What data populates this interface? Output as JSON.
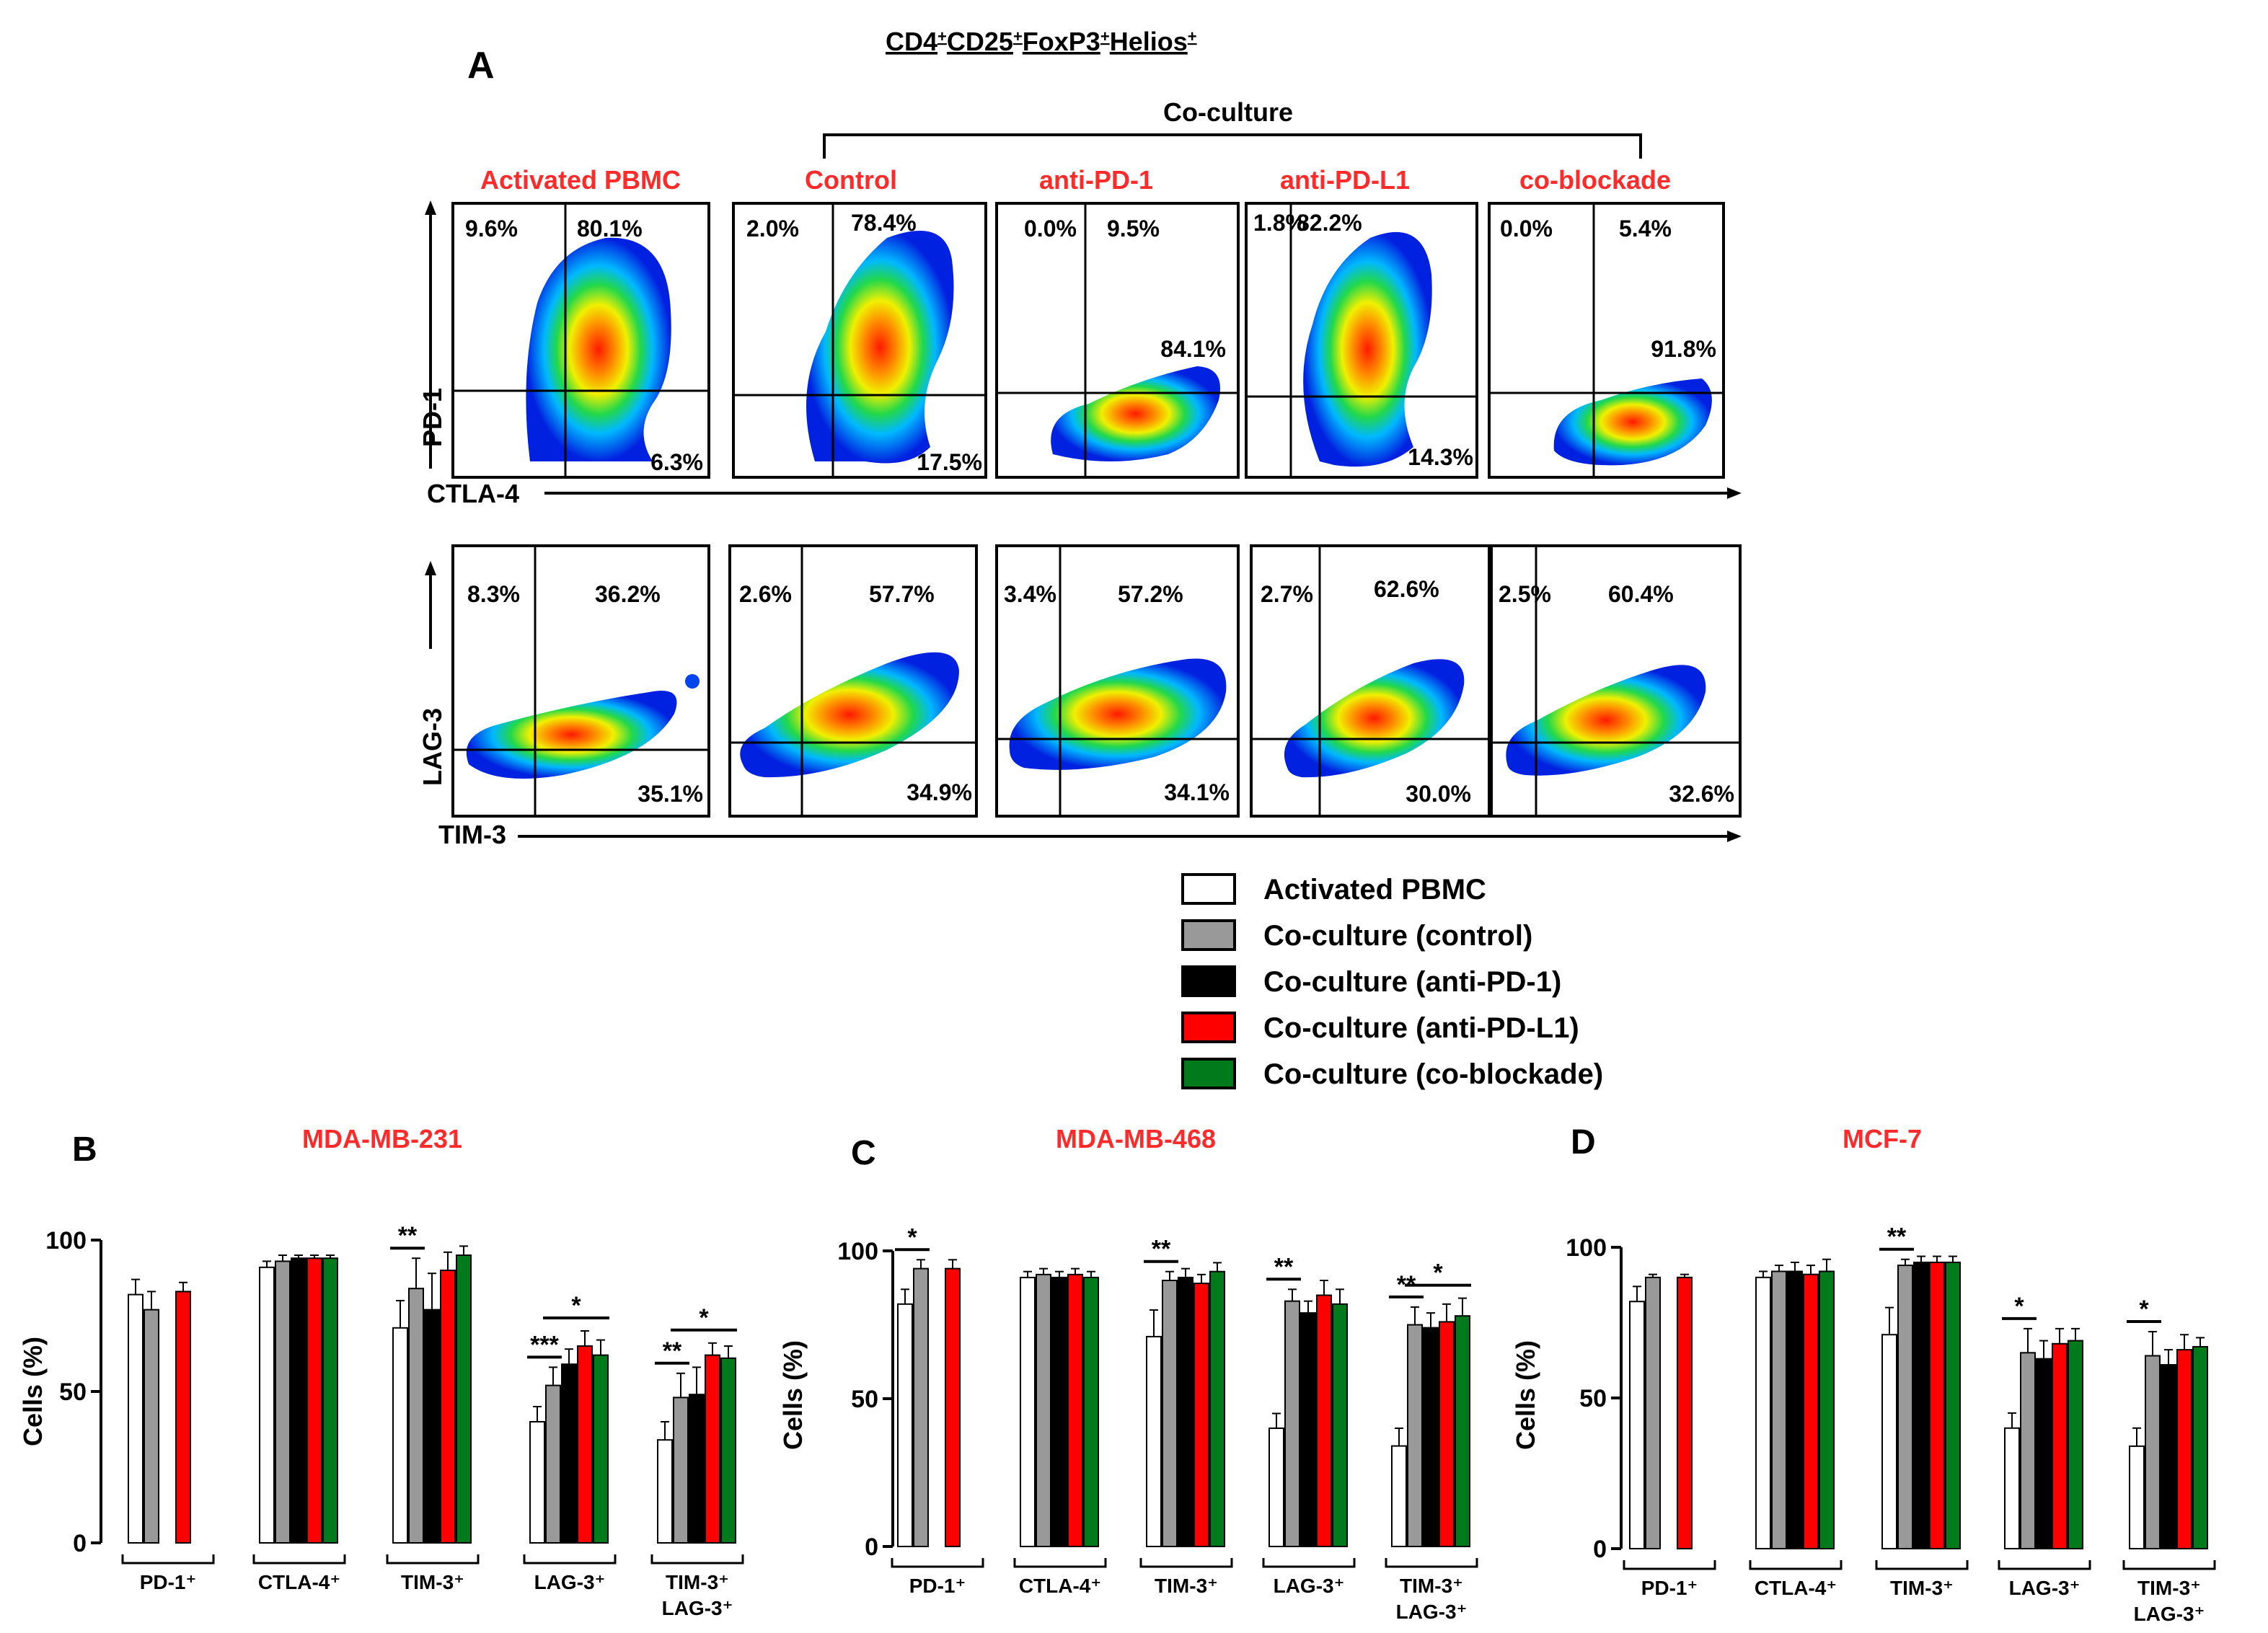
{
  "figure": {
    "panel_a_letter": "A",
    "title_main": "CD4",
    "title_sup1": "+",
    "title_cd25": "CD25",
    "title_sup2": "+",
    "title_foxp3": "FoxP3",
    "title_sup3": "+",
    "title_helios": "Helios",
    "title_sup4": "+",
    "coculture_label": "Co-culture"
  },
  "flow": {
    "conditions": [
      "Activated PBMC",
      "Control",
      "anti-PD-1",
      "anti-PD-L1",
      "co-blockade"
    ],
    "row1": {
      "y_label": "PD-1",
      "x_label": "CTLA-4",
      "plots": [
        {
          "ul": "9.6%",
          "ur": "80.1%",
          "lr": "6.3%"
        },
        {
          "ul": "2.0%",
          "ur": "78.4%",
          "lr": "17.5%"
        },
        {
          "ul": "0.0%",
          "ur": "9.5%",
          "lr": "84.1%"
        },
        {
          "ul": "1.8%",
          "ur": "82.2%",
          "lr": "14.3%"
        },
        {
          "ul": "0.0%",
          "ur": "5.4%",
          "lr": "91.8%"
        }
      ]
    },
    "row2": {
      "y_label": "LAG-3",
      "x_label": "TIM-3",
      "plots": [
        {
          "ul": "8.3%",
          "ur": "36.2%",
          "lr": "35.1%"
        },
        {
          "ul": "2.6%",
          "ur": "57.7%",
          "lr": "34.9%"
        },
        {
          "ul": "3.4%",
          "ur": "57.2%",
          "lr": "34.1%"
        },
        {
          "ul": "2.7%",
          "ur": "62.6%",
          "lr": "30.0%"
        },
        {
          "ul": "2.5%",
          "ur": "60.4%",
          "lr": "32.6%"
        }
      ]
    }
  },
  "legend": {
    "items": [
      {
        "label": "Activated PBMC",
        "color": "#ffffff"
      },
      {
        "label": "Co-culture (control)",
        "color": "#999999"
      },
      {
        "label": "Co-culture (anti-PD-1)",
        "color": "#000000"
      },
      {
        "label": "Co-culture (anti-PD-L1)",
        "color": "#ff0000"
      },
      {
        "label": "Co-culture (co-blockade)",
        "color": "#007a1a"
      }
    ]
  },
  "chart_data": [
    {
      "panel": "B",
      "type": "bar",
      "title": "MDA-MB-231",
      "ylabel": "Cells (%)",
      "ylim": [
        0,
        100
      ],
      "yticks": [
        0,
        50,
        100
      ],
      "categories": [
        "PD-1⁺",
        "CTLA-4⁺",
        "TIM-3⁺",
        "LAG-3⁺",
        "TIM-3⁺ LAG-3⁺"
      ],
      "category_lines": [
        [
          "PD-1⁺"
        ],
        [
          "CTLA-4⁺"
        ],
        [
          "TIM-3⁺"
        ],
        [
          "LAG-3⁺"
        ],
        [
          "TIM-3⁺",
          "LAG-3⁺"
        ]
      ],
      "series": [
        {
          "name": "Activated PBMC",
          "values": [
            82,
            91,
            71,
            40,
            34
          ],
          "errors": [
            5,
            2,
            9,
            5,
            6
          ]
        },
        {
          "name": "Co-culture (control)",
          "values": [
            77,
            93,
            84,
            52,
            48
          ],
          "errors": [
            6,
            2,
            10,
            6,
            8
          ]
        },
        {
          "name": "Co-culture (anti-PD-1)",
          "values": [
            null,
            94,
            77,
            59,
            49
          ],
          "errors": [
            null,
            1,
            12,
            5,
            9
          ]
        },
        {
          "name": "Co-culture (anti-PD-L1)",
          "values": [
            83,
            94,
            90,
            65,
            62
          ],
          "errors": [
            3,
            1,
            6,
            5,
            4
          ]
        },
        {
          "name": "Co-culture (co-blockade)",
          "values": [
            null,
            94,
            95,
            62,
            61
          ],
          "errors": [
            null,
            1,
            3,
            5,
            4
          ]
        }
      ],
      "significance": [
        {
          "group": 2,
          "from": 0,
          "to": 1,
          "label": "**"
        },
        {
          "group": 3,
          "from": 0,
          "to": 1,
          "label": "***"
        },
        {
          "group": 3,
          "from": 1,
          "to": 4,
          "label": "*"
        },
        {
          "group": 4,
          "from": 0,
          "to": 1,
          "label": "**"
        },
        {
          "group": 4,
          "from": 1,
          "to": 4,
          "label": "*"
        }
      ]
    },
    {
      "panel": "C",
      "type": "bar",
      "title": "MDA-MB-468",
      "ylabel": "Cells (%)",
      "ylim": [
        0,
        100
      ],
      "yticks": [
        0,
        50,
        100
      ],
      "categories": [
        "PD-1⁺",
        "CTLA-4⁺",
        "TIM-3⁺",
        "LAG-3⁺",
        "TIM-3⁺ LAG-3⁺"
      ],
      "category_lines": [
        [
          "PD-1⁺"
        ],
        [
          "CTLA-4⁺"
        ],
        [
          "TIM-3⁺"
        ],
        [
          "LAG-3⁺"
        ],
        [
          "TIM-3⁺",
          "LAG-3⁺"
        ]
      ],
      "series": [
        {
          "name": "Activated PBMC",
          "values": [
            82,
            91,
            71,
            40,
            34
          ],
          "errors": [
            5,
            2,
            9,
            5,
            6
          ]
        },
        {
          "name": "Co-culture (control)",
          "values": [
            94,
            92,
            90,
            83,
            75
          ],
          "errors": [
            3,
            2,
            3,
            4,
            6
          ]
        },
        {
          "name": "Co-culture (anti-PD-1)",
          "values": [
            null,
            91,
            91,
            79,
            74
          ],
          "errors": [
            null,
            2,
            3,
            4,
            5
          ]
        },
        {
          "name": "Co-culture (anti-PD-L1)",
          "values": [
            94,
            92,
            89,
            85,
            76
          ],
          "errors": [
            3,
            2,
            3,
            5,
            6
          ]
        },
        {
          "name": "Co-culture (co-blockade)",
          "values": [
            null,
            91,
            93,
            82,
            78
          ],
          "errors": [
            null,
            2,
            3,
            5,
            6
          ]
        }
      ],
      "significance": [
        {
          "group": 0,
          "from": 0,
          "to": 1,
          "label": "*"
        },
        {
          "group": 2,
          "from": 0,
          "to": 1,
          "label": "**"
        },
        {
          "group": 3,
          "from": 0,
          "to": 1,
          "label": "**"
        },
        {
          "group": 4,
          "from": 0,
          "to": 1,
          "label": "**"
        },
        {
          "group": 4,
          "from": 1,
          "to": 4,
          "label": "*"
        }
      ]
    },
    {
      "panel": "D",
      "type": "bar",
      "title": "MCF-7",
      "ylabel": "Cells (%)",
      "ylim": [
        0,
        100
      ],
      "yticks": [
        0,
        50,
        100
      ],
      "categories": [
        "PD-1⁺",
        "CTLA-4⁺",
        "TIM-3⁺",
        "LAG-3⁺",
        "TIM-3⁺ LAG-3⁺"
      ],
      "category_lines": [
        [
          "PD-1⁺"
        ],
        [
          "CTLA-4⁺"
        ],
        [
          "TIM-3⁺"
        ],
        [
          "LAG-3⁺"
        ],
        [
          "TIM-3⁺",
          "LAG-3⁺"
        ]
      ],
      "series": [
        {
          "name": "Activated PBMC",
          "values": [
            82,
            90,
            71,
            40,
            34
          ],
          "errors": [
            5,
            2,
            9,
            5,
            6
          ]
        },
        {
          "name": "Co-culture (control)",
          "values": [
            90,
            92,
            94,
            65,
            64
          ],
          "errors": [
            1,
            2,
            2,
            8,
            8
          ]
        },
        {
          "name": "Co-culture (anti-PD-1)",
          "values": [
            null,
            92,
            95,
            63,
            61
          ],
          "errors": [
            null,
            3,
            2,
            6,
            5
          ]
        },
        {
          "name": "Co-culture (anti-PD-L1)",
          "values": [
            90,
            91,
            95,
            68,
            66
          ],
          "errors": [
            1,
            3,
            2,
            5,
            5
          ]
        },
        {
          "name": "Co-culture (co-blockade)",
          "values": [
            null,
            92,
            95,
            69,
            67
          ],
          "errors": [
            null,
            4,
            2,
            4,
            3
          ]
        }
      ],
      "significance": [
        {
          "group": 2,
          "from": 0,
          "to": 1,
          "label": "**"
        },
        {
          "group": 3,
          "from": 0,
          "to": 1,
          "label": "*"
        },
        {
          "group": 4,
          "from": 0,
          "to": 1,
          "label": "*"
        }
      ]
    }
  ]
}
